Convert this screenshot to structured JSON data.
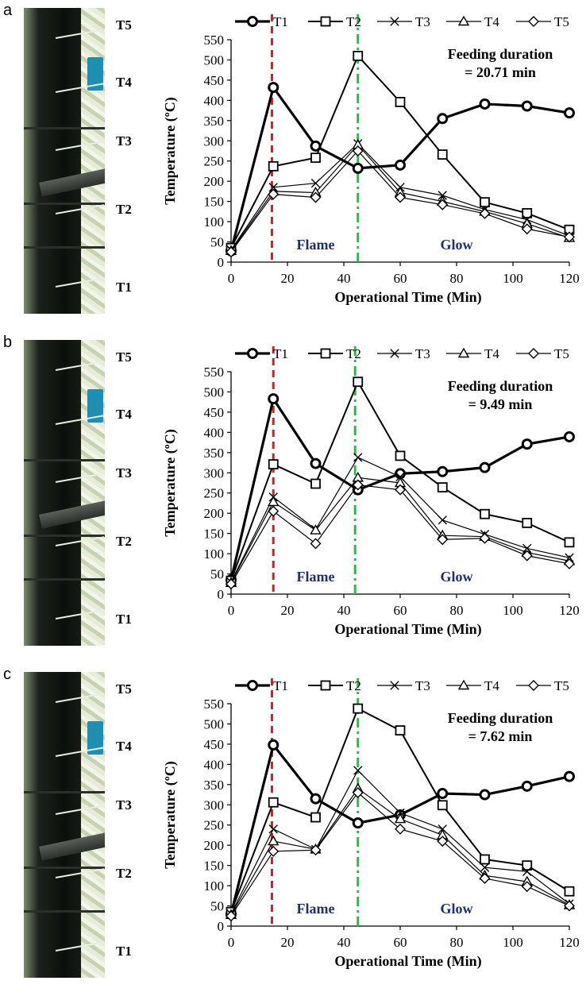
{
  "figure_panels": [
    {
      "letter": "a",
      "photo_labels": [
        "T5",
        "T4",
        "T3",
        "T2",
        "T1"
      ],
      "chart_data": {
        "type": "line",
        "x": [
          0,
          15,
          30,
          45,
          60,
          75,
          90,
          105,
          120
        ],
        "xlabel": "Operational Time (Min)",
        "ylabel": "Temperature (ºC)",
        "xlim": [
          0,
          120
        ],
        "ylim": [
          0,
          550
        ],
        "xticks": [
          "0",
          "20",
          "40",
          "60",
          "80",
          "100",
          "120"
        ],
        "yticks": [
          "0",
          "50",
          "100",
          "150",
          "200",
          "250",
          "300",
          "350",
          "400",
          "450",
          "500",
          "550"
        ],
        "legend_position": "top",
        "annotation_line1": "Feeding duration",
        "annotation_line2": "= 20.71 min",
        "region_labels": {
          "flame": "Flame",
          "glow": "Glow"
        },
        "flame_line_x": 14.5,
        "glow_line_x": 45,
        "series": [
          {
            "name": "T1",
            "marker": "circle",
            "values": [
              28,
              432,
              287,
              232,
              240,
              355,
              391,
              386,
              369
            ]
          },
          {
            "name": "T2",
            "marker": "square",
            "values": [
              35,
              237,
              258,
              510,
              396,
              266,
              148,
              121,
              80
            ]
          },
          {
            "name": "T3",
            "marker": "x",
            "values": [
              30,
              185,
              195,
              293,
              185,
              165,
              130,
              105,
              65
            ]
          },
          {
            "name": "T4",
            "marker": "triangle",
            "values": [
              28,
              175,
              172,
              290,
              172,
              150,
              125,
              95,
              60
            ]
          },
          {
            "name": "T5",
            "marker": "diamond",
            "values": [
              25,
              168,
              160,
              275,
              160,
              142,
              120,
              82,
              62
            ]
          }
        ]
      }
    },
    {
      "letter": "b",
      "photo_labels": [
        "T5",
        "T4",
        "T3",
        "T2",
        "T1"
      ],
      "chart_data": {
        "type": "line",
        "x": [
          0,
          15,
          30,
          45,
          60,
          75,
          90,
          105,
          120
        ],
        "xlabel": "Operational Time (Min)",
        "ylabel": "Temperature (ºC)",
        "xlim": [
          0,
          120
        ],
        "ylim": [
          0,
          550
        ],
        "xticks": [
          "0",
          "20",
          "40",
          "60",
          "80",
          "100",
          "120"
        ],
        "yticks": [
          "0",
          "50",
          "100",
          "150",
          "200",
          "250",
          "300",
          "350",
          "400",
          "450",
          "500",
          "550"
        ],
        "legend_position": "top",
        "annotation_line1": "Feeding duration",
        "annotation_line2": "= 9.49 min",
        "region_labels": {
          "flame": "Flame",
          "glow": "Glow"
        },
        "flame_line_x": 15,
        "glow_line_x": 44,
        "series": [
          {
            "name": "T1",
            "marker": "circle",
            "values": [
              35,
              483,
              323,
              258,
              298,
              303,
              313,
              371,
              389
            ]
          },
          {
            "name": "T2",
            "marker": "square",
            "values": [
              33,
              321,
              273,
              525,
              342,
              264,
              198,
              176,
              128
            ]
          },
          {
            "name": "T3",
            "marker": "x",
            "values": [
              30,
              240,
              160,
              338,
              290,
              183,
              148,
              113,
              90
            ]
          },
          {
            "name": "T4",
            "marker": "triangle",
            "values": [
              28,
              228,
              158,
              288,
              275,
              145,
              142,
              103,
              82
            ]
          },
          {
            "name": "T5",
            "marker": "diamond",
            "values": [
              25,
              205,
              125,
              270,
              258,
              135,
              138,
              95,
              75
            ]
          }
        ]
      }
    },
    {
      "letter": "c",
      "photo_labels": [
        "T5",
        "T4",
        "T3",
        "T2",
        "T1"
      ],
      "chart_data": {
        "type": "line",
        "x": [
          0,
          15,
          30,
          45,
          60,
          75,
          90,
          105,
          120
        ],
        "xlabel": "Operational Time (Min)",
        "ylabel": "Temperature (ºC)",
        "xlim": [
          0,
          120
        ],
        "ylim": [
          0,
          550
        ],
        "xticks": [
          "0",
          "20",
          "40",
          "60",
          "80",
          "100",
          "120"
        ],
        "yticks": [
          "0",
          "50",
          "100",
          "150",
          "200",
          "250",
          "300",
          "350",
          "400",
          "450",
          "500",
          "550"
        ],
        "legend_position": "top",
        "annotation_line1": "Feeding duration",
        "annotation_line2": "= 7.62 min",
        "region_labels": {
          "flame": "Flame",
          "glow": "Glow"
        },
        "flame_line_x": 14.5,
        "glow_line_x": 45,
        "series": [
          {
            "name": "T1",
            "marker": "circle",
            "values": [
              30,
              448,
              315,
              255,
              275,
              328,
              325,
              346,
              370
            ]
          },
          {
            "name": "T2",
            "marker": "square",
            "values": [
              35,
              306,
              269,
              538,
              484,
              299,
              165,
              150,
              86
            ]
          },
          {
            "name": "T3",
            "marker": "x",
            "values": [
              30,
              240,
              190,
              385,
              280,
              240,
              145,
              135,
              55
            ]
          },
          {
            "name": "T4",
            "marker": "triangle",
            "values": [
              28,
              210,
              190,
              340,
              265,
              225,
              125,
              110,
              52
            ]
          },
          {
            "name": "T5",
            "marker": "diamond",
            "values": [
              25,
              185,
              188,
              330,
              240,
              210,
              118,
              98,
              50
            ]
          }
        ]
      }
    }
  ],
  "colors": {
    "flame_line": "#c0282d",
    "glow_line": "#2db84a",
    "region_text": "#1f2f6b",
    "series": "#000000"
  }
}
